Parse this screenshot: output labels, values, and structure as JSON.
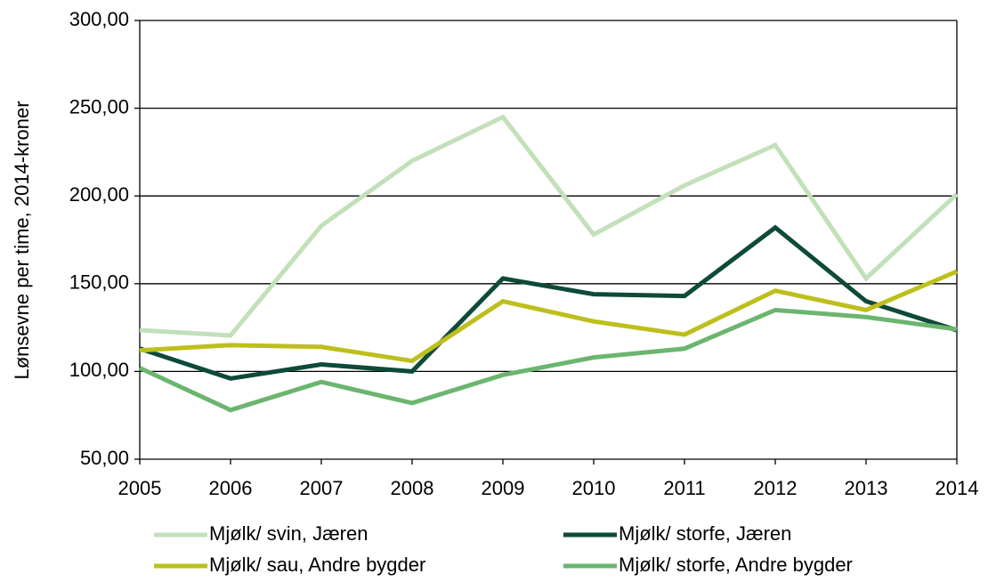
{
  "chart_data": {
    "type": "line",
    "y_label": "Lønsevne per time, 2014-kroner",
    "x": [
      2005,
      2006,
      2007,
      2008,
      2009,
      2010,
      2011,
      2012,
      2013,
      2014
    ],
    "xlim": [
      2005,
      2014
    ],
    "xticks": [
      2005,
      2006,
      2007,
      2008,
      2009,
      2010,
      2011,
      2012,
      2013,
      2014
    ],
    "ylim": [
      50,
      300
    ],
    "yticks": [
      {
        "value": 50,
        "label": "50,00"
      },
      {
        "value": 100,
        "label": "100,00"
      },
      {
        "value": 150,
        "label": "150,00"
      },
      {
        "value": 200,
        "label": "200,00"
      },
      {
        "value": 250,
        "label": "250,00"
      },
      {
        "value": 300,
        "label": "300,00"
      }
    ],
    "grid": true,
    "series": [
      {
        "name": "Mjølk/ svin, Jæren",
        "color": "#c2e0b9",
        "values": [
          123.5,
          120.5,
          183,
          220,
          245,
          178,
          206,
          229,
          153,
          201
        ]
      },
      {
        "name": "Mjølk/ storfe, Jæren",
        "color": "#0e4a3a",
        "values": [
          113,
          96,
          104,
          100,
          153,
          144,
          143,
          182,
          140,
          123.5
        ]
      },
      {
        "name": "Mjølk/ sau, Andre bygder",
        "color": "#bdbf1c",
        "values": [
          112,
          115,
          114,
          106,
          140,
          128.5,
          121,
          146,
          135,
          157
        ]
      },
      {
        "name": "Mjølk/ storfe, Andre bygder",
        "color": "#6bb56f",
        "values": [
          102,
          78,
          94,
          82,
          98,
          108,
          113,
          135,
          131,
          124
        ]
      }
    ]
  }
}
